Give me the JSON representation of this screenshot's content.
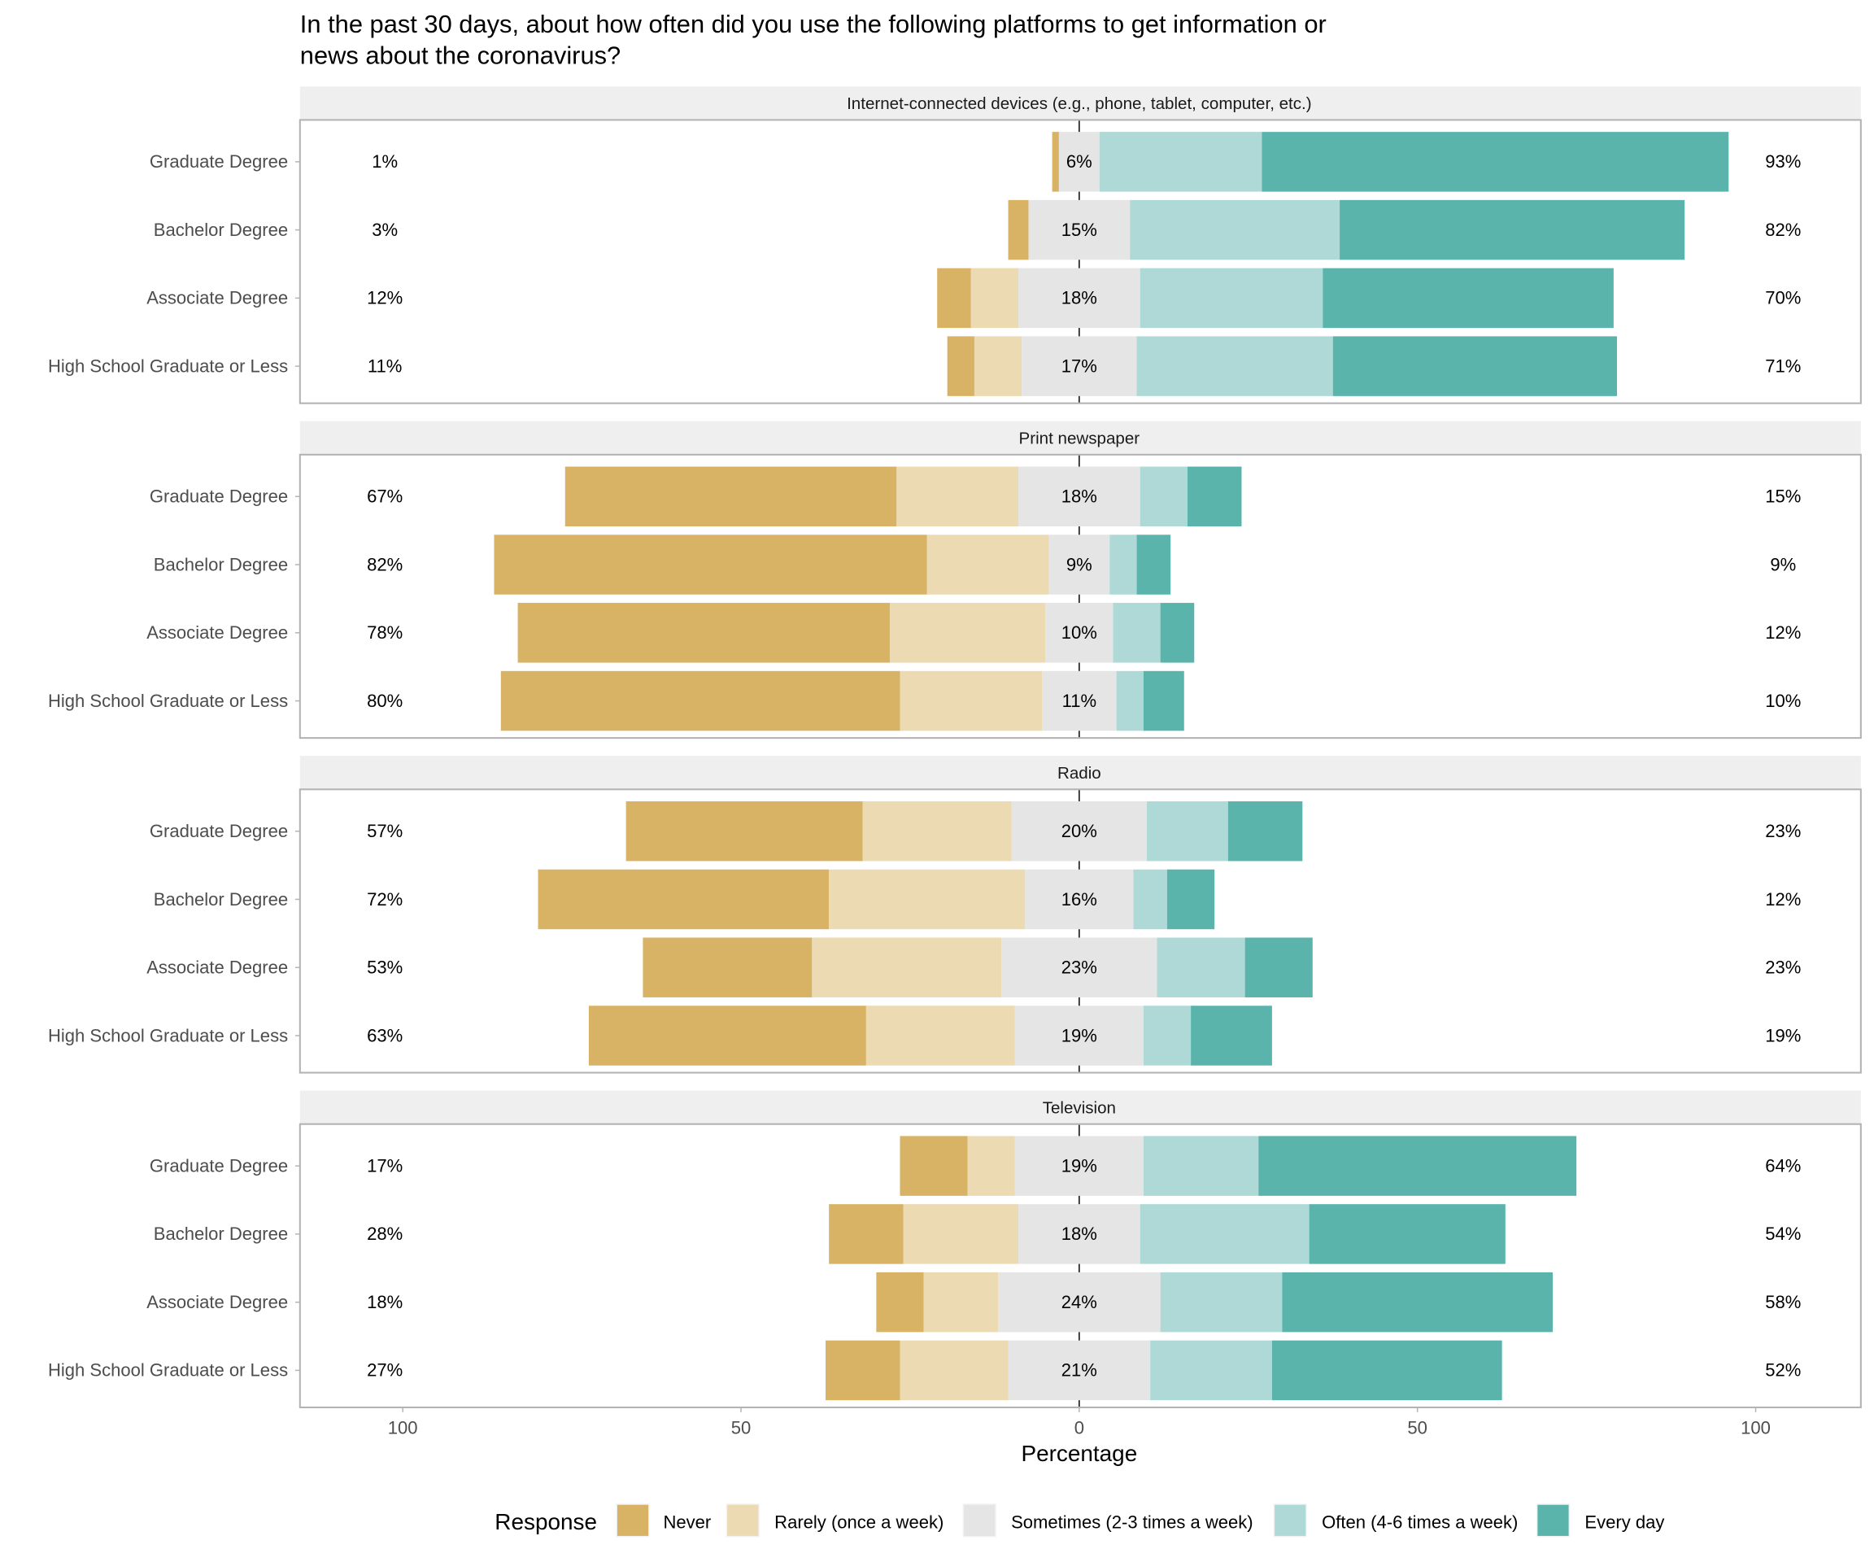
{
  "chart_data": {
    "type": "bar",
    "subtype": "diverging-stacked-horizontal",
    "title": "In the past 30 days, about how often did you use the following platforms to get information or news about the coronavirus?",
    "title_lines": [
      "In the past 30 days, about how often did you use the following platforms to get information or",
      "news about the coronavirus?"
    ],
    "xlabel": "Percentage",
    "ylabel": "",
    "xlim": [
      -100,
      100
    ],
    "x_ticks": [
      -100,
      -50,
      0,
      50,
      100
    ],
    "x_tick_labels": [
      "100",
      "50",
      "0",
      "50",
      "100"
    ],
    "legend": {
      "title": "Response",
      "position": "bottom",
      "entries": [
        {
          "label": "Never",
          "color": "#d8b365"
        },
        {
          "label": "Rarely (once a week)",
          "color": "#ebdab2"
        },
        {
          "label": "Sometimes (2-3 times a week)",
          "color": "#e5e5e5"
        },
        {
          "label": "Often (4-6 times a week)",
          "color": "#aed9d6"
        },
        {
          "label": "Every day",
          "color": "#5ab4ac"
        }
      ]
    },
    "categories": [
      "Graduate Degree",
      "Bachelor Degree",
      "Associate Degree",
      "High School Graduate or Less"
    ],
    "panels": [
      {
        "name": "Internet-connected devices (e.g., phone, tablet, computer, etc.)",
        "rows": [
          {
            "group": "Graduate Degree",
            "values": [
              1,
              0,
              6,
              24,
              69
            ],
            "low_label": "1%",
            "mid_label": "6%",
            "high_label": "93%"
          },
          {
            "group": "Bachelor Degree",
            "values": [
              3,
              0,
              15,
              31,
              51
            ],
            "low_label": "3%",
            "mid_label": "15%",
            "high_label": "82%"
          },
          {
            "group": "Associate Degree",
            "values": [
              5,
              7,
              18,
              27,
              43
            ],
            "low_label": "12%",
            "mid_label": "18%",
            "high_label": "70%"
          },
          {
            "group": "High School Graduate or Less",
            "values": [
              4,
              7,
              17,
              29,
              42
            ],
            "low_label": "11%",
            "mid_label": "17%",
            "high_label": "71%"
          }
        ]
      },
      {
        "name": "Print newspaper",
        "rows": [
          {
            "group": "Graduate Degree",
            "values": [
              49,
              18,
              18,
              7,
              8
            ],
            "low_label": "67%",
            "mid_label": "18%",
            "high_label": "15%"
          },
          {
            "group": "Bachelor Degree",
            "values": [
              64,
              18,
              9,
              4,
              5
            ],
            "low_label": "82%",
            "mid_label": "9%",
            "high_label": "9%"
          },
          {
            "group": "Associate Degree",
            "values": [
              55,
              23,
              10,
              7,
              5
            ],
            "low_label": "78%",
            "mid_label": "10%",
            "high_label": "12%"
          },
          {
            "group": "High School Graduate or Less",
            "values": [
              59,
              21,
              11,
              4,
              6
            ],
            "low_label": "80%",
            "mid_label": "11%",
            "high_label": "10%"
          }
        ]
      },
      {
        "name": "Radio",
        "rows": [
          {
            "group": "Graduate Degree",
            "values": [
              35,
              22,
              20,
              12,
              11
            ],
            "low_label": "57%",
            "mid_label": "20%",
            "high_label": "23%"
          },
          {
            "group": "Bachelor Degree",
            "values": [
              43,
              29,
              16,
              5,
              7
            ],
            "low_label": "72%",
            "mid_label": "16%",
            "high_label": "12%"
          },
          {
            "group": "Associate Degree",
            "values": [
              25,
              28,
              23,
              13,
              10
            ],
            "low_label": "53%",
            "mid_label": "23%",
            "high_label": "23%"
          },
          {
            "group": "High School Graduate or Less",
            "values": [
              41,
              22,
              19,
              7,
              12
            ],
            "low_label": "63%",
            "mid_label": "19%",
            "high_label": "19%"
          }
        ]
      },
      {
        "name": "Television",
        "rows": [
          {
            "group": "Graduate Degree",
            "values": [
              10,
              7,
              19,
              17,
              47
            ],
            "low_label": "17%",
            "mid_label": "19%",
            "high_label": "64%"
          },
          {
            "group": "Bachelor Degree",
            "values": [
              11,
              17,
              18,
              25,
              29
            ],
            "low_label": "28%",
            "mid_label": "18%",
            "high_label": "54%"
          },
          {
            "group": "Associate Degree",
            "values": [
              7,
              11,
              24,
              18,
              40
            ],
            "low_label": "18%",
            "mid_label": "24%",
            "high_label": "58%"
          },
          {
            "group": "High School Graduate or Less",
            "values": [
              11,
              16,
              21,
              18,
              34
            ],
            "low_label": "27%",
            "mid_label": "21%",
            "high_label": "52%"
          }
        ]
      }
    ],
    "grid": true
  }
}
